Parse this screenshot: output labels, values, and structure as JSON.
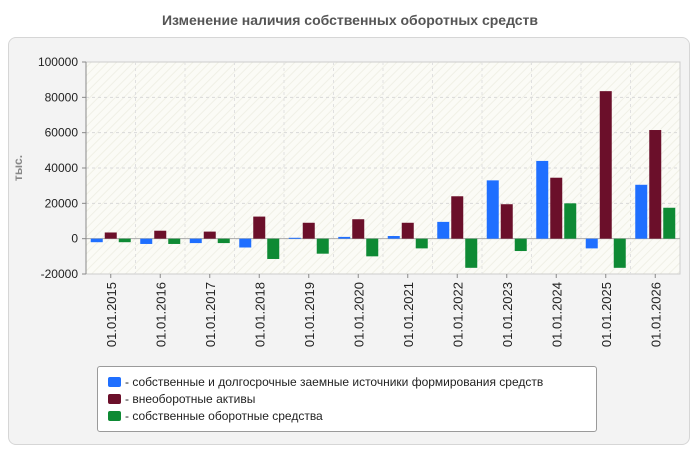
{
  "title": "Изменение наличия собственных оборотных средств",
  "chart_data": {
    "type": "bar",
    "title": "Изменение наличия собственных оборотных средств",
    "ylabel": "тыс.",
    "xlabel": "",
    "ylim": [
      -20000,
      100000
    ],
    "yticks": [
      -20000,
      0,
      20000,
      40000,
      60000,
      80000,
      100000
    ],
    "grid": true,
    "legend_position": "bottom",
    "categories": [
      "01.01.2015",
      "01.01.2016",
      "01.01.2017",
      "01.01.2018",
      "01.01.2019",
      "01.01.2020",
      "01.01.2021",
      "01.01.2022",
      "01.01.2023",
      "01.01.2024",
      "01.01.2025",
      "01.01.2026"
    ],
    "series": [
      {
        "name": "- собственные и долгосрочные заемные источники формирования средств",
        "color": "#1f6fff",
        "values": [
          -2000,
          -3000,
          -2500,
          -5000,
          500,
          1000,
          1500,
          9500,
          33000,
          44000,
          -5500,
          30500
        ]
      },
      {
        "name": "- внеоборотные активы",
        "color": "#6b0f2a",
        "values": [
          3500,
          4500,
          4000,
          12500,
          9000,
          11000,
          9000,
          24000,
          19500,
          34500,
          83500,
          61500
        ]
      },
      {
        "name": "- собственные оборотные средства",
        "color": "#0e8a34",
        "values": [
          -2000,
          -3000,
          -2500,
          -11500,
          -8500,
          -10000,
          -5500,
          -16500,
          -7000,
          20000,
          -16500,
          17500
        ]
      }
    ]
  }
}
